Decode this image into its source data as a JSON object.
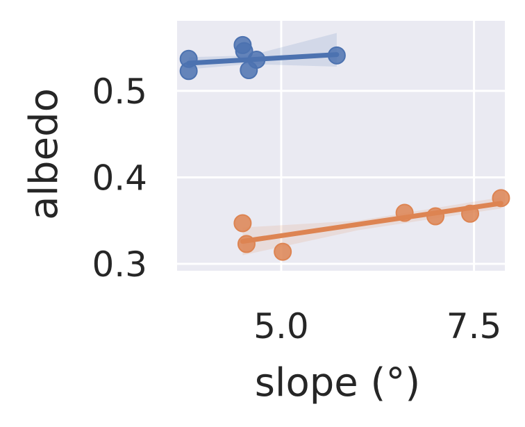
{
  "chart_data": {
    "type": "scatter",
    "title": "",
    "xlabel": "slope (°)",
    "ylabel": "albedo",
    "xlim": [
      3.65,
      7.9
    ],
    "ylim": [
      0.292,
      0.581
    ],
    "xticks": [
      5.0,
      7.5
    ],
    "xtick_labels": [
      "5.0",
      "7.5"
    ],
    "yticks": [
      0.3,
      0.4,
      0.5
    ],
    "ytick_labels": [
      "0.3",
      "0.4",
      "0.5"
    ],
    "grid": true,
    "legend": "none",
    "background": "#EAEAF2",
    "series": [
      {
        "color": "#4C72B0",
        "points": [
          {
            "x": 3.8,
            "y": 0.537
          },
          {
            "x": 3.8,
            "y": 0.523
          },
          {
            "x": 4.5,
            "y": 0.553
          },
          {
            "x": 4.52,
            "y": 0.546
          },
          {
            "x": 4.58,
            "y": 0.524
          },
          {
            "x": 4.68,
            "y": 0.536
          },
          {
            "x": 5.72,
            "y": 0.541
          }
        ],
        "fit": {
          "x0": 3.8,
          "y0": 0.532,
          "x1": 5.72,
          "y1": 0.542
        },
        "ci_band": {
          "x": [
            3.8,
            4.6,
            5.72
          ],
          "lower": [
            0.525,
            0.531,
            0.528
          ],
          "upper": [
            0.539,
            0.541,
            0.567
          ]
        }
      },
      {
        "color": "#DD8452",
        "points": [
          {
            "x": 4.5,
            "y": 0.347
          },
          {
            "x": 4.55,
            "y": 0.323
          },
          {
            "x": 5.02,
            "y": 0.314
          },
          {
            "x": 6.6,
            "y": 0.359
          },
          {
            "x": 7.0,
            "y": 0.355
          },
          {
            "x": 7.45,
            "y": 0.358
          },
          {
            "x": 7.85,
            "y": 0.376
          }
        ],
        "fit": {
          "x0": 4.5,
          "y0": 0.326,
          "x1": 7.85,
          "y1": 0.37
        },
        "ci_band": {
          "x": [
            4.5,
            6.0,
            7.85
          ],
          "lower": [
            0.31,
            0.339,
            0.364
          ],
          "upper": [
            0.342,
            0.35,
            0.377
          ]
        }
      }
    ]
  }
}
